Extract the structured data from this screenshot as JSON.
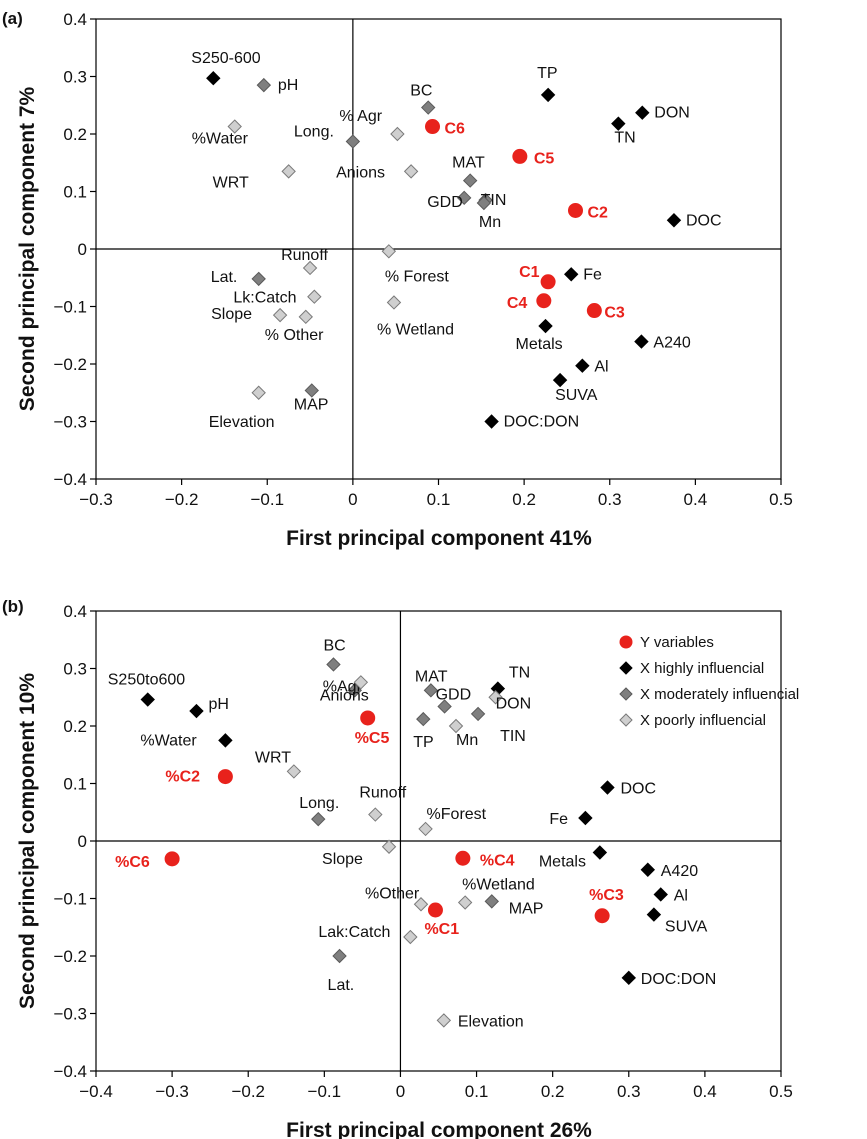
{
  "chart_data": [
    {
      "type": "scatter",
      "panel_label": "(a)",
      "xlabel": "First principal component 41%",
      "ylabel": "Second principal component 7%",
      "xlim": [
        -0.3,
        0.5
      ],
      "ylim": [
        -0.4,
        0.4
      ],
      "xticks": [
        "−0.3",
        "−0.2",
        "−0.1",
        "0",
        "0.1",
        "0.2",
        "0.3",
        "0.4",
        "0.5"
      ],
      "yticks": [
        "0.4",
        "0.3",
        "0.2",
        "0.1",
        "0",
        "−0.1",
        "−0.2",
        "−0.3",
        "−0.4"
      ],
      "series": [
        {
          "category": "Y variables",
          "color": "#e8221c",
          "points": [
            {
              "label": "C1",
              "x": 0.228,
              "y": -0.057
            },
            {
              "label": "C2",
              "x": 0.26,
              "y": 0.067
            },
            {
              "label": "C3",
              "x": 0.282,
              "y": -0.107
            },
            {
              "label": "C4",
              "x": 0.223,
              "y": -0.09
            },
            {
              "label": "C5",
              "x": 0.195,
              "y": 0.161
            },
            {
              "label": "C6",
              "x": 0.093,
              "y": 0.213
            }
          ]
        },
        {
          "category": "X highly influencial",
          "color": "#000000",
          "points": [
            {
              "label": "S250-600",
              "x": -0.163,
              "y": 0.297
            },
            {
              "label": "TP",
              "x": 0.228,
              "y": 0.268
            },
            {
              "label": "DON",
              "x": 0.338,
              "y": 0.237
            },
            {
              "label": "TN",
              "x": 0.31,
              "y": 0.218
            },
            {
              "label": "DOC",
              "x": 0.375,
              "y": 0.05
            },
            {
              "label": "Fe",
              "x": 0.255,
              "y": -0.044
            },
            {
              "label": "Metals",
              "x": 0.225,
              "y": -0.134
            },
            {
              "label": "A240",
              "x": 0.337,
              "y": -0.161
            },
            {
              "label": "Al",
              "x": 0.268,
              "y": -0.203
            },
            {
              "label": "SUVA",
              "x": 0.242,
              "y": -0.228
            },
            {
              "label": "DOC:DON",
              "x": 0.162,
              "y": -0.3
            }
          ]
        },
        {
          "category": "X moderately influencial",
          "color": "#7f7f7f",
          "points": [
            {
              "label": "pH",
              "x": -0.104,
              "y": 0.285
            },
            {
              "label": "BC",
              "x": 0.088,
              "y": 0.246
            },
            {
              "label": "Long.",
              "x": 0.0,
              "y": 0.187
            },
            {
              "label": "MAT",
              "x": 0.137,
              "y": 0.119
            },
            {
              "label": "GDD",
              "x": 0.13,
              "y": 0.089
            },
            {
              "label": "TIN",
              "x": 0.155,
              "y": 0.085
            },
            {
              "label": "Mn",
              "x": 0.153,
              "y": 0.08
            },
            {
              "label": "Lat.",
              "x": -0.11,
              "y": -0.052
            },
            {
              "label": "MAP",
              "x": -0.048,
              "y": -0.246
            }
          ]
        },
        {
          "category": "X poorly influencial",
          "color": "#cfcfcf",
          "points": [
            {
              "label": "%Water",
              "x": -0.138,
              "y": 0.213
            },
            {
              "label": "% Agr",
              "x": 0.052,
              "y": 0.2
            },
            {
              "label": "WRT",
              "x": -0.075,
              "y": 0.135
            },
            {
              "label": "Anions",
              "x": 0.068,
              "y": 0.135
            },
            {
              "label": "Runoff",
              "x": -0.05,
              "y": -0.033
            },
            {
              "label": "% Forest",
              "x": 0.042,
              "y": -0.004
            },
            {
              "label": "Lk:Catch",
              "x": -0.045,
              "y": -0.083
            },
            {
              "label": "% Wetland",
              "x": 0.048,
              "y": -0.093
            },
            {
              "label": "Slope",
              "x": -0.085,
              "y": -0.115
            },
            {
              "label": "% Other",
              "x": -0.055,
              "y": -0.118
            },
            {
              "label": "Elevation",
              "x": -0.11,
              "y": -0.25
            }
          ]
        }
      ]
    },
    {
      "type": "scatter",
      "panel_label": "(b)",
      "xlabel": "First principal component 26%",
      "ylabel": "Second principal component 10%",
      "xlim": [
        -0.4,
        0.5
      ],
      "ylim": [
        -0.4,
        0.4
      ],
      "xticks": [
        "−0.4",
        "−0.3",
        "−0.2",
        "−0.1",
        "0",
        "0.1",
        "0.2",
        "0.3",
        "0.4",
        "0.5"
      ],
      "yticks": [
        "0.4",
        "0.3",
        "0.2",
        "0.1",
        "0",
        "−0.1",
        "−0.2",
        "−0.3",
        "−0.4"
      ],
      "legend": [
        "Y variables",
        "X highly influencial",
        "X moderately influencial",
        "X poorly influencial"
      ],
      "series": [
        {
          "category": "Y variables",
          "color": "#e8221c",
          "points": [
            {
              "label": "%C1",
              "x": 0.046,
              "y": -0.12
            },
            {
              "label": "%C2",
              "x": -0.23,
              "y": 0.112
            },
            {
              "label": "%C3",
              "x": 0.265,
              "y": -0.13
            },
            {
              "label": "%C4",
              "x": 0.082,
              "y": -0.03
            },
            {
              "label": "%C5",
              "x": -0.043,
              "y": 0.214
            },
            {
              "label": "%C6",
              "x": -0.3,
              "y": -0.031
            }
          ]
        },
        {
          "category": "X highly influencial",
          "color": "#000000",
          "points": [
            {
              "label": "S250to600",
              "x": -0.332,
              "y": 0.246
            },
            {
              "label": "pH",
              "x": -0.268,
              "y": 0.226
            },
            {
              "label": "%Water",
              "x": -0.23,
              "y": 0.175
            },
            {
              "label": "TN",
              "x": 0.128,
              "y": 0.265
            },
            {
              "label": "DOC",
              "x": 0.272,
              "y": 0.093
            },
            {
              "label": "Fe",
              "x": 0.243,
              "y": 0.04
            },
            {
              "label": "Metals",
              "x": 0.262,
              "y": -0.02
            },
            {
              "label": "A420",
              "x": 0.325,
              "y": -0.05
            },
            {
              "label": "Al",
              "x": 0.342,
              "y": -0.093
            },
            {
              "label": "SUVA",
              "x": 0.333,
              "y": -0.128
            },
            {
              "label": "DOC:DON",
              "x": 0.3,
              "y": -0.238
            }
          ]
        },
        {
          "category": "X moderately influencial",
          "color": "#7f7f7f",
          "points": [
            {
              "label": "BC",
              "x": -0.088,
              "y": 0.307
            },
            {
              "label": "%Agr",
              "x": -0.06,
              "y": 0.262
            },
            {
              "label": "MAT",
              "x": 0.04,
              "y": 0.262
            },
            {
              "label": "GDD",
              "x": 0.058,
              "y": 0.234
            },
            {
              "label": "TP",
              "x": 0.03,
              "y": 0.212
            },
            {
              "label": "TIN",
              "x": 0.102,
              "y": 0.221
            },
            {
              "label": "Long.",
              "x": -0.108,
              "y": 0.038
            },
            {
              "label": "MAP",
              "x": 0.12,
              "y": -0.105
            },
            {
              "label": "Lat.",
              "x": -0.08,
              "y": -0.2
            }
          ]
        },
        {
          "category": "X poorly influencial",
          "color": "#cfcfcf",
          "points": [
            {
              "label": "Anions",
              "x": -0.052,
              "y": 0.276
            },
            {
              "label": "DON",
              "x": 0.125,
              "y": 0.25
            },
            {
              "label": "Mn",
              "x": 0.073,
              "y": 0.2
            },
            {
              "label": "WRT",
              "x": -0.14,
              "y": 0.121
            },
            {
              "label": "Runoff",
              "x": -0.033,
              "y": 0.046
            },
            {
              "label": "%Forest",
              "x": 0.033,
              "y": 0.021
            },
            {
              "label": "Slope",
              "x": -0.015,
              "y": -0.01
            },
            {
              "label": "%Wetland",
              "x": 0.085,
              "y": -0.107
            },
            {
              "label": "%Other",
              "x": 0.027,
              "y": -0.11
            },
            {
              "label": "Lak:Catch",
              "x": 0.013,
              "y": -0.167
            },
            {
              "label": "Elevation",
              "x": 0.057,
              "y": -0.312
            }
          ]
        }
      ]
    }
  ]
}
